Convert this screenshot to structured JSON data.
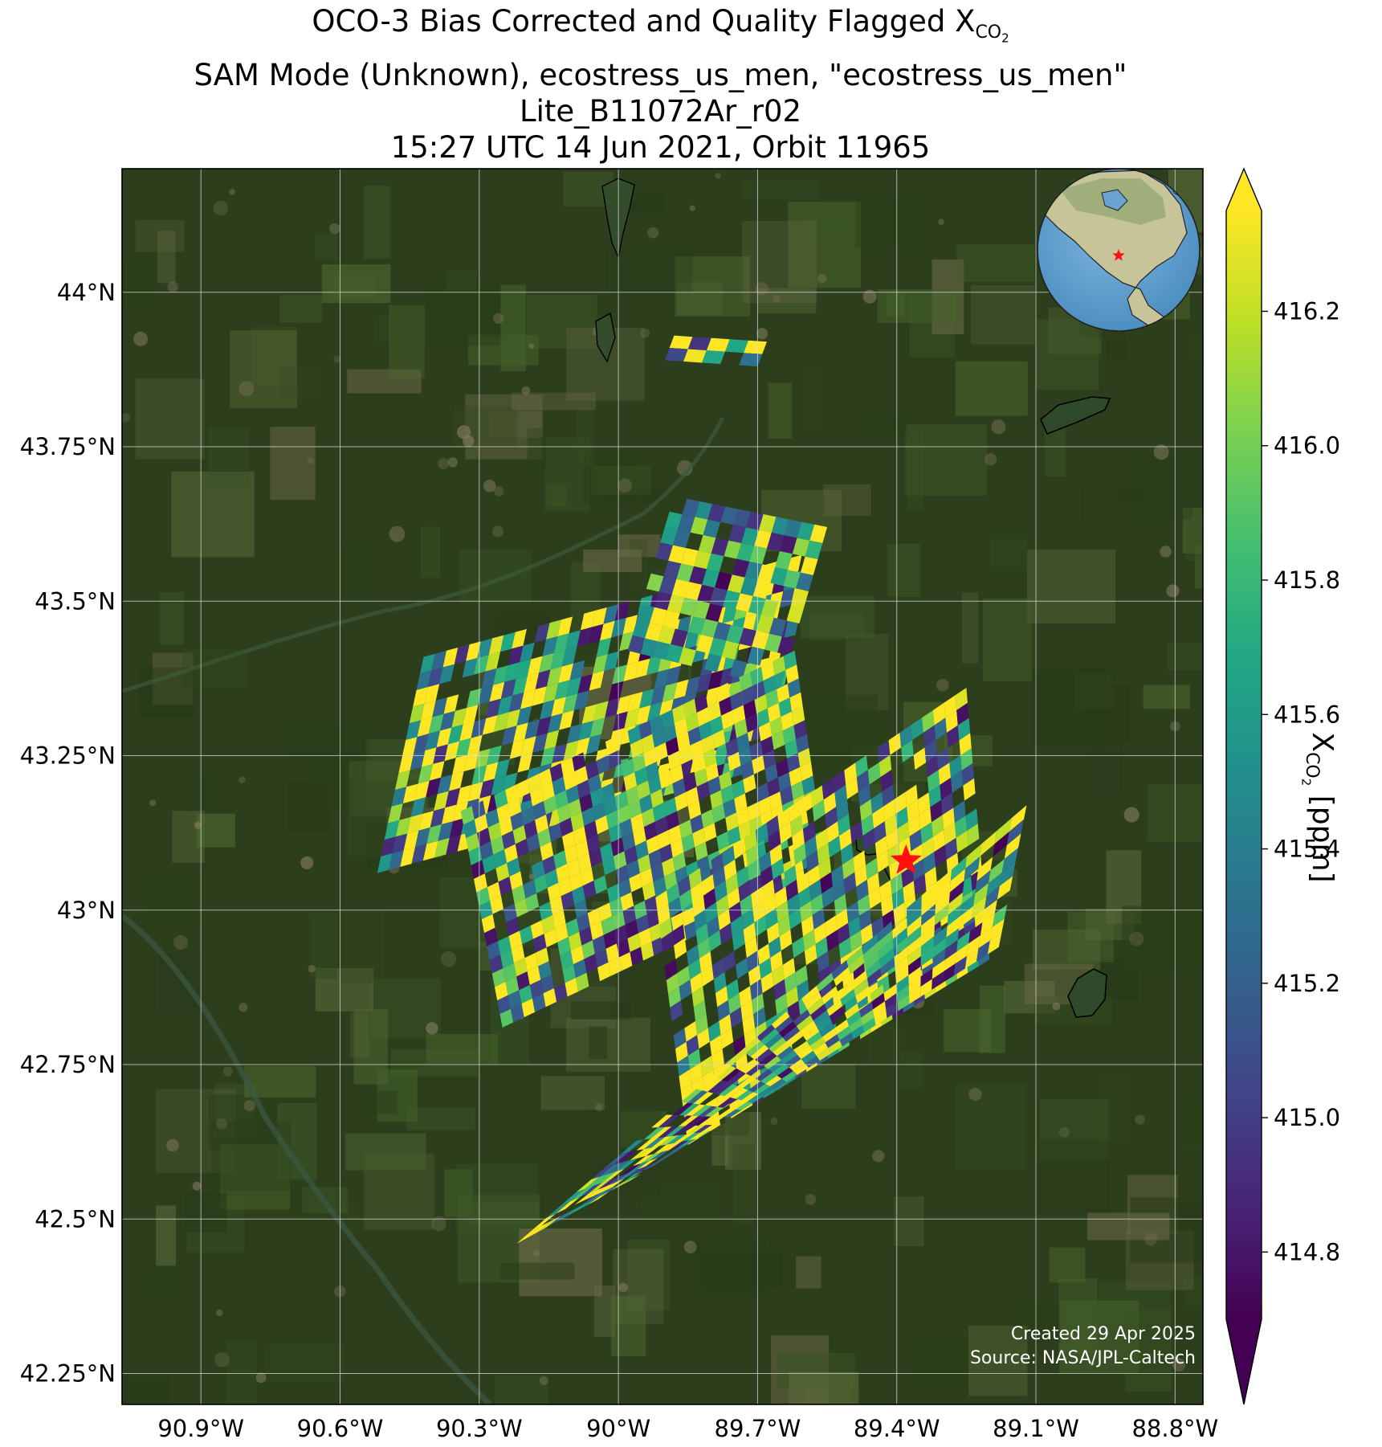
{
  "title": {
    "line1_prefix": "OCO-3 Bias Corrected and Quality Flagged X",
    "line1_sub": "CO",
    "line1_subsub": "2",
    "line2": "SAM Mode (Unknown), ecostress_us_men, \"ecostress_us_men\"",
    "line3": "Lite_B11072Ar_r02",
    "line4": "15:27 UTC 14 Jun 2021, Orbit 11965"
  },
  "map": {
    "lon_range": [
      -91.07,
      -88.74
    ],
    "lat_range": [
      42.2,
      44.2
    ],
    "lon_ticks": [
      {
        "value": -90.9,
        "label": "90.9°W"
      },
      {
        "value": -90.6,
        "label": "90.6°W"
      },
      {
        "value": -90.3,
        "label": "90.3°W"
      },
      {
        "value": -90.0,
        "label": "90°W"
      },
      {
        "value": -89.7,
        "label": "89.7°W"
      },
      {
        "value": -89.4,
        "label": "89.4°W"
      },
      {
        "value": -89.1,
        "label": "89.1°W"
      },
      {
        "value": -88.8,
        "label": "88.8°W"
      }
    ],
    "lat_ticks": [
      {
        "value": 44.0,
        "label": "44°N"
      },
      {
        "value": 43.75,
        "label": "43.75°N"
      },
      {
        "value": 43.5,
        "label": "43.5°N"
      },
      {
        "value": 43.25,
        "label": "43.25°N"
      },
      {
        "value": 43.0,
        "label": "43°N"
      },
      {
        "value": 42.75,
        "label": "42.75°N"
      },
      {
        "value": 42.5,
        "label": "42.5°N"
      },
      {
        "value": 42.25,
        "label": "42.25°N"
      }
    ],
    "gridlines": true,
    "basemap": "satellite imagery",
    "target_marker": {
      "lon": -89.38,
      "lat": 43.08,
      "color": "#ff0000"
    },
    "inset_globe": {
      "placement": "top-right",
      "marker_color": "#ff0000"
    }
  },
  "chart_data": {
    "type": "heatmap",
    "variable": "XCO2",
    "units": "ppm",
    "colormap": "viridis",
    "color_range": [
      414.7,
      416.35
    ],
    "colorbar_ticks": [
      414.8,
      415.0,
      415.2,
      415.4,
      415.6,
      415.8,
      416.0,
      416.2
    ],
    "colorbar_tick_labels": [
      "414.8",
      "415.0",
      "415.2",
      "415.4",
      "415.6",
      "415.8",
      "416.0",
      "416.2"
    ],
    "colorbar_extend": "both",
    "swaths": [
      {
        "corners": [
          [
            -90.42,
            43.41
          ],
          [
            -89.58,
            43.58
          ],
          [
            -89.68,
            43.23
          ],
          [
            -90.52,
            43.06
          ]
        ],
        "cols": 34,
        "rows": 13
      },
      {
        "corners": [
          [
            -89.88,
            43.67
          ],
          [
            -89.55,
            43.62
          ],
          [
            -89.65,
            43.36
          ],
          [
            -89.98,
            43.42
          ]
        ],
        "cols": 12,
        "rows": 10
      },
      {
        "corners": [
          [
            -90.34,
            43.16
          ],
          [
            -89.62,
            43.42
          ],
          [
            -89.55,
            43.06
          ],
          [
            -90.25,
            42.81
          ]
        ],
        "cols": 30,
        "rows": 16
      },
      {
        "corners": [
          [
            -89.92,
            43.02
          ],
          [
            -89.25,
            43.36
          ],
          [
            -89.2,
            42.92
          ],
          [
            -89.85,
            42.62
          ]
        ],
        "cols": 28,
        "rows": 18
      },
      {
        "corners": [
          [
            -90.22,
            42.46
          ],
          [
            -89.12,
            43.17
          ],
          [
            -89.18,
            42.94
          ],
          [
            -90.0,
            42.55
          ]
        ],
        "cols": 34,
        "rows": 10
      },
      {
        "corners": [
          [
            -89.88,
            43.93
          ],
          [
            -89.68,
            43.92
          ],
          [
            -89.7,
            43.88
          ],
          [
            -89.9,
            43.89
          ]
        ],
        "cols": 5,
        "rows": 2
      }
    ],
    "density": 0.82,
    "seed": 11965
  },
  "credit": {
    "line1": "Created 29 Apr 2025",
    "line2": "Source: NASA/JPL-Caltech"
  },
  "colorbar": {
    "label_prefix": "X",
    "label_sub": "CO",
    "label_subsub": "2",
    "label_suffix": " [ppm]"
  }
}
